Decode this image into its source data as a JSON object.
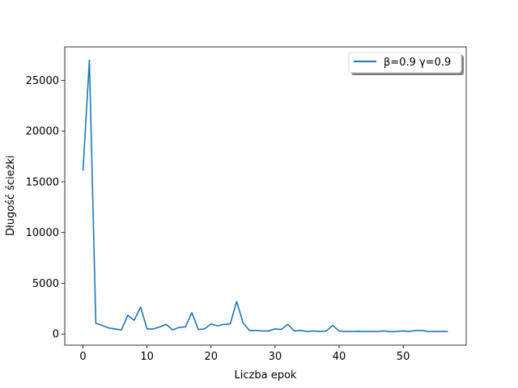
{
  "chart_data": {
    "type": "line",
    "title": "",
    "xlabel": "Liczba epok",
    "ylabel": "Długość ścieżki",
    "xlim": [
      -2.85,
      59.85
    ],
    "ylim": [
      -1100,
      28300
    ],
    "xticks": [
      0,
      10,
      20,
      30,
      40,
      50
    ],
    "yticks": [
      0,
      5000,
      10000,
      15000,
      20000,
      25000
    ],
    "grid": false,
    "legend_position": "top-right",
    "series": [
      {
        "name": "β=0.9 γ=0.9",
        "color": "#1f77b4",
        "x": [
          0,
          1,
          2,
          3,
          4,
          5,
          6,
          7,
          8,
          9,
          10,
          11,
          12,
          13,
          14,
          15,
          16,
          17,
          18,
          19,
          20,
          21,
          22,
          23,
          24,
          25,
          26,
          27,
          28,
          29,
          30,
          31,
          32,
          33,
          34,
          35,
          36,
          37,
          38,
          39,
          40,
          41,
          42,
          43,
          44,
          45,
          46,
          47,
          48,
          49,
          50,
          51,
          52,
          53,
          54,
          55,
          56,
          57
        ],
        "values": [
          16100,
          27000,
          1050,
          850,
          600,
          500,
          400,
          1850,
          1350,
          2650,
          500,
          500,
          700,
          950,
          400,
          650,
          700,
          2100,
          450,
          500,
          1000,
          800,
          950,
          1000,
          3200,
          1100,
          350,
          350,
          300,
          300,
          500,
          450,
          950,
          300,
          350,
          250,
          300,
          250,
          300,
          850,
          300,
          250,
          250,
          270,
          250,
          250,
          250,
          300,
          230,
          250,
          300,
          250,
          350,
          350,
          230,
          250,
          250,
          250
        ]
      }
    ]
  }
}
